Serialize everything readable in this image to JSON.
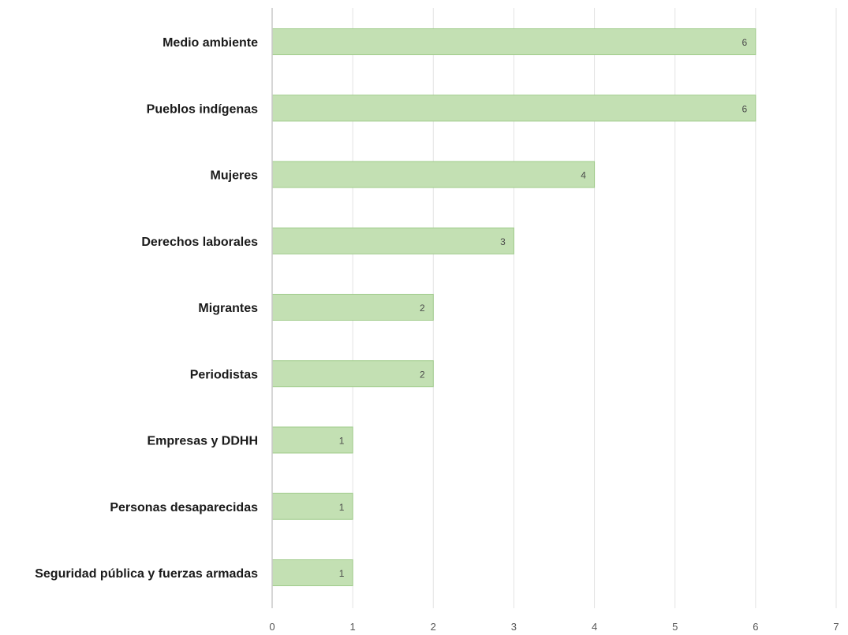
{
  "chart_data": {
    "type": "bar",
    "orientation": "horizontal",
    "categories": [
      "Medio ambiente",
      "Pueblos indígenas",
      "Mujeres",
      "Derechos laborales",
      "Migrantes",
      "Periodistas",
      "Empresas y DDHH",
      "Personas desaparecidas",
      "Seguridad pública y fuerzas armadas"
    ],
    "values": [
      6,
      6,
      4,
      3,
      2,
      2,
      1,
      1,
      1
    ],
    "data_labels": [
      "6",
      "6",
      "4",
      "3",
      "2",
      "2",
      "1",
      "1",
      "1"
    ],
    "xlim": [
      0,
      7
    ],
    "xticks": [
      "0",
      "1",
      "2",
      "3",
      "4",
      "5",
      "6",
      "7"
    ],
    "title": "",
    "xlabel": "",
    "ylabel": "",
    "grid": "vertical",
    "legend": "none",
    "colors": {
      "bar_fill": "#c3e0b3",
      "bar_stroke": "#9fcb8a",
      "grid": "#e3e3e3",
      "axis": "#c8c8c8"
    }
  }
}
